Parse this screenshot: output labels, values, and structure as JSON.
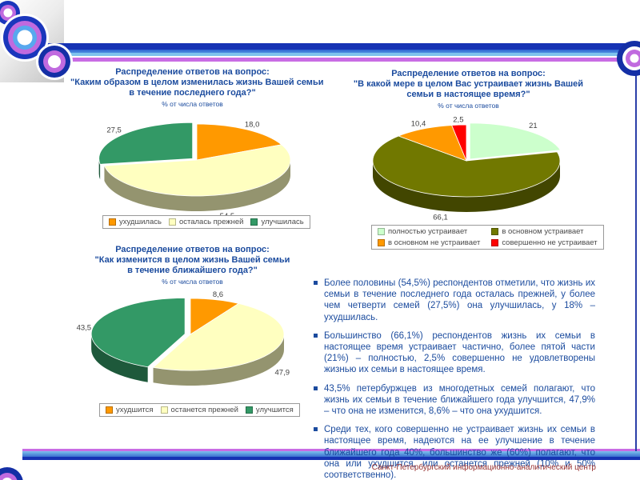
{
  "theme_colors": {
    "accent_navy": "#1B4B9E",
    "footer_red": "#973232",
    "stripe_navy": "#1633B4",
    "stripe_blue": "#7EC2EC",
    "stripe_purple": "#C96CE4"
  },
  "footer": {
    "text": "Санкт-Петербургский информационно-аналитический центр"
  },
  "bullets": [
    "Более половины (54,5%) респондентов отметили, что жизнь их семьи в течение последнего года осталась прежней, у более чем четверти семей (27,5%) она улучшилась, у 18% – ухудшилась.",
    "Большинство (66,1%) респондентов жизнь их семьи в настоящее время устраивает частично, более пятой части (21%) – полностью, 2,5% совершенно не удовлетворены жизнью их семьи в настоящее время.",
    "43,5% петербуржцев из многодетных семей полагают, что жизнь их семьи в течение ближайшего года улучшится, 47,9% – что она не изменится, 8,6% – что она ухудшится.",
    "Среди тех, кого совершенно не устраивает жизнь их семьи в настоящее время, надеются на ее улучшение в течение ближайшего года 40%, большинство же (60%) полагают, что она или ухудшится, или останется прежней (10% и 50% соответственно)."
  ],
  "chart_data": [
    {
      "type": "pie",
      "title": "Распределение ответов на вопрос: \"Каким образом в целом изменилась жизнь Вашей семьи в течение последнего года?\"",
      "title_lines": [
        "Распределение ответов на вопрос:",
        "\"Каким образом в целом изменилась жизнь Вашей семьи",
        "в течение последнего года?\""
      ],
      "subtitle": "% от числа ответов",
      "labels": [
        "ухудшилась",
        "осталась прежней",
        "улучшилась"
      ],
      "values": [
        18.0,
        54.5,
        27.5
      ],
      "display_values": [
        "18,0",
        "54,5",
        "27,5"
      ],
      "colors": [
        "#FF9900",
        "#FFFFC0",
        "#339966"
      ],
      "legend_position": "bottom",
      "exploded_label": "улучшилась"
    },
    {
      "type": "pie",
      "title": "Распределение ответов на вопрос: \"В какой мере в целом Вас устраивает жизнь Вашей семьи в настоящее время?\"",
      "title_lines": [
        "Распределение ответов на вопрос:",
        "\"В какой мере в целом Вас устраивает жизнь Вашей",
        "семьи в настоящее время?\""
      ],
      "subtitle": "% от числа ответов",
      "labels": [
        "полностью устраивает",
        "в основном устраивает",
        "в основном не устраивает",
        "совершенно не устраивает"
      ],
      "values": [
        21.0,
        66.1,
        10.4,
        2.5
      ],
      "display_values": [
        "21",
        "66,1",
        "10,4",
        "2,5"
      ],
      "colors": [
        "#CCFFCC",
        "#717800",
        "#FF9900",
        "#FF0000"
      ],
      "legend_position": "bottom",
      "exploded_label": "полностью устраивает"
    },
    {
      "type": "pie",
      "title": "Распределение ответов на вопрос: \"Как изменится в целом жизнь Вашей семьи в течение ближайшего года?\"",
      "title_lines": [
        "Распределение ответов на вопрос:",
        "\"Как изменится в целом жизнь Вашей семьи",
        "в течение ближайшего года?\""
      ],
      "subtitle": "% от числа ответов",
      "labels": [
        "ухудшится",
        "останется прежней",
        "улучшится"
      ],
      "values": [
        8.6,
        47.9,
        43.5
      ],
      "display_values": [
        "8,6",
        "47,9",
        "43,5"
      ],
      "colors": [
        "#FF9900",
        "#FFFFC0",
        "#339966"
      ],
      "legend_position": "bottom",
      "exploded_label": "улучшится"
    }
  ]
}
